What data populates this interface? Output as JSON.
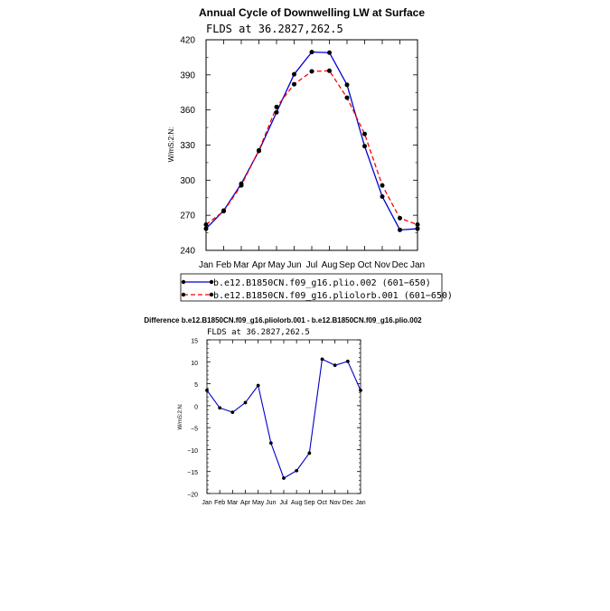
{
  "chart_data": [
    {
      "type": "line",
      "title": "Annual Cycle of Downwelling LW at Surface",
      "subtitle": "FLDS at 36.2827,262.5",
      "ylabel": "W/mS:2:N:",
      "ylim": [
        240,
        420
      ],
      "yticks": [
        "420",
        "390",
        "360",
        "330",
        "300",
        "270",
        "240"
      ],
      "categories": [
        "Jan",
        "Feb",
        "Mar",
        "Apr",
        "May",
        "Jun",
        "Jul",
        "Aug",
        "Sep",
        "Oct",
        "Nov",
        "Dec",
        "Jan"
      ],
      "series": [
        {
          "name": "b.e12.B1850CN.f09_g16.plio.002 (601−650)",
          "color": "#0000cc",
          "dash": "solid",
          "values": [
            258.5,
            274,
            297,
            325,
            358,
            390.5,
            409.5,
            409,
            381.5,
            329,
            286,
            257.5,
            258.5
          ]
        },
        {
          "name": "b.e12.B1850CN.f09_g16.pliolorb.001 (601−650)",
          "color": "#ff0000",
          "dash": "dashed",
          "values": [
            262,
            273.5,
            295.5,
            325.5,
            362.5,
            382,
            393,
            393.5,
            370.5,
            339.5,
            295.5,
            267.5,
            262
          ]
        }
      ]
    },
    {
      "type": "line",
      "title": "Difference b.e12.B1850CN.f09_g16.pliolorb.001 - b.e12.B1850CN.f09_g16.plio.002",
      "subtitle": "FLDS at 36.2827,262.5",
      "ylabel": "W/mS:2:N:",
      "ylim": [
        -20,
        15
      ],
      "yticks": [
        "15",
        "10",
        "5",
        "0",
        "−5",
        "−10",
        "−15",
        "−20"
      ],
      "categories": [
        "Jan",
        "Feb",
        "Mar",
        "Apr",
        "May",
        "Jun",
        "Jul",
        "Aug",
        "Sep",
        "Oct",
        "Nov",
        "Dec",
        "Jan"
      ],
      "series": [
        {
          "color": "#0000cc",
          "values": [
            3.5,
            -0.5,
            -1.5,
            0.7,
            4.6,
            -8.5,
            -16.5,
            -14.8,
            -10.8,
            10.6,
            9.2,
            10.1,
            3.5
          ]
        }
      ]
    }
  ]
}
